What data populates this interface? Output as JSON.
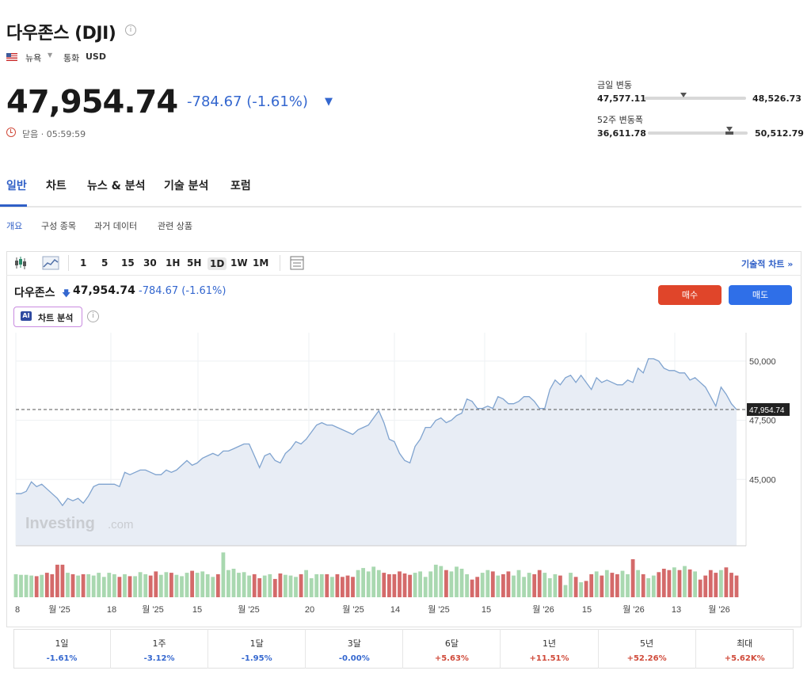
{
  "header": {
    "title": "다우존스 (DJI)",
    "exchange": "뉴욕",
    "currency_label": "통화",
    "currency": "USD",
    "price": "47,954.74",
    "change": "-784.67  (-1.61%)",
    "status": "닫음 · 05:59:59"
  },
  "ranges": {
    "day": {
      "label": "금일 변동",
      "low": "47,577.11",
      "high": "48,526.73",
      "position": 0.38
    },
    "week52": {
      "label": "52주 변동폭",
      "low": "36,611.78",
      "high": "50,512.79",
      "position": 0.82
    }
  },
  "tabs": [
    "일반",
    "차트",
    "뉴스 & 분석",
    "기술 분석",
    "포럼"
  ],
  "subtabs": [
    "개요",
    "구성 종목",
    "과거 데이터",
    "관련 상품"
  ],
  "toolbar": {
    "timeframes": [
      "1",
      "5",
      "15",
      "30",
      "1H",
      "5H",
      "1D",
      "1W",
      "1M"
    ],
    "active": "1D",
    "tech_chart": "기술적 차트 »"
  },
  "symbol": {
    "name": "다우존스",
    "price": "47,954.74",
    "change": "-784.67  (-1.61%)",
    "buy": "매수",
    "sell": "매도",
    "ai_label": "차트 분석",
    "ai_badge": "AI"
  },
  "watermark": {
    "main": "Investing",
    "suffix": ".com"
  },
  "chart_data": {
    "type": "area",
    "y_ticks": [
      "50,000",
      "47,500",
      "45,000"
    ],
    "current_label": "47,954.74",
    "x_tick_labels": [
      "8",
      "월 '25",
      "18",
      "월 '25",
      "15",
      "월 '25",
      "20",
      "월 '25",
      "14",
      "월 '25",
      "15",
      "월 '26",
      "15",
      "월 '26",
      "13",
      "월 '26"
    ],
    "ylim": [
      42200,
      51200
    ],
    "values": [
      44400,
      44400,
      44500,
      44900,
      44700,
      44800,
      44600,
      44400,
      44200,
      43900,
      44200,
      44100,
      44200,
      44000,
      44300,
      44700,
      44800,
      44800,
      44800,
      44800,
      44700,
      45300,
      45200,
      45300,
      45400,
      45400,
      45300,
      45200,
      45200,
      45400,
      45300,
      45400,
      45600,
      45800,
      45600,
      45700,
      45900,
      46000,
      46100,
      46000,
      46200,
      46200,
      46300,
      46400,
      46500,
      46500,
      46000,
      45500,
      46000,
      46100,
      45800,
      45700,
      46100,
      46300,
      46600,
      46500,
      46700,
      47000,
      47300,
      47400,
      47300,
      47300,
      47200,
      47100,
      47000,
      46900,
      47100,
      47200,
      47300,
      47600,
      47900,
      47400,
      46700,
      46600,
      46100,
      45800,
      45700,
      46400,
      46700,
      47200,
      47200,
      47500,
      47600,
      47400,
      47500,
      47700,
      47800,
      48400,
      48300,
      48000,
      48000,
      48100,
      48000,
      48500,
      48400,
      48200,
      48200,
      48300,
      48500,
      48500,
      48300,
      48000,
      48000,
      48800,
      49200,
      49000,
      49300,
      49400,
      49100,
      49400,
      49100,
      48800,
      49300,
      49100,
      49200,
      49100,
      49000,
      49000,
      49200,
      49100,
      49700,
      49500,
      50100,
      50100,
      50000,
      49700,
      49600,
      49600,
      49500,
      49500,
      49200,
      49300,
      49100,
      48900,
      48500,
      48100,
      48900,
      48600,
      48200,
      47954.74
    ],
    "volumes": [
      34,
      33,
      33,
      32,
      31,
      33,
      36,
      34,
      48,
      48,
      36,
      34,
      32,
      34,
      34,
      32,
      36,
      30,
      36,
      34,
      30,
      34,
      31,
      31,
      37,
      34,
      32,
      38,
      33,
      37,
      36,
      33,
      31,
      36,
      39,
      36,
      38,
      34,
      30,
      34,
      66,
      40,
      42,
      36,
      37,
      32,
      34,
      28,
      32,
      34,
      27,
      35,
      33,
      32,
      30,
      34,
      40,
      28,
      34,
      34,
      34,
      30,
      34,
      30,
      32,
      30,
      40,
      43,
      38,
      45,
      40,
      36,
      34,
      34,
      38,
      35,
      33,
      36,
      38,
      30,
      38,
      48,
      46,
      40,
      38,
      45,
      42,
      34,
      26,
      30,
      36,
      40,
      38,
      32,
      34,
      38,
      32,
      40,
      30,
      36,
      34,
      40,
      36,
      28,
      34,
      32,
      18,
      36,
      30,
      22,
      24,
      34,
      38,
      32,
      40,
      36,
      34,
      39,
      34,
      56,
      40,
      34,
      28,
      32,
      37,
      42,
      40,
      44,
      40,
      46,
      41,
      38,
      26,
      32,
      40,
      36,
      40,
      44,
      36,
      32
    ]
  },
  "performance": [
    {
      "label": "1일",
      "value": "-1.61%",
      "dir": "neg"
    },
    {
      "label": "1주",
      "value": "-3.12%",
      "dir": "neg"
    },
    {
      "label": "1달",
      "value": "-1.95%",
      "dir": "neg"
    },
    {
      "label": "3달",
      "value": "-0.00%",
      "dir": "neg"
    },
    {
      "label": "6달",
      "value": "+5.63%",
      "dir": "pos"
    },
    {
      "label": "1년",
      "value": "+11.51%",
      "dir": "pos"
    },
    {
      "label": "5년",
      "value": "+52.26%",
      "dir": "pos"
    },
    {
      "label": "최대",
      "value": "+5.62K%",
      "dir": "pos"
    }
  ]
}
